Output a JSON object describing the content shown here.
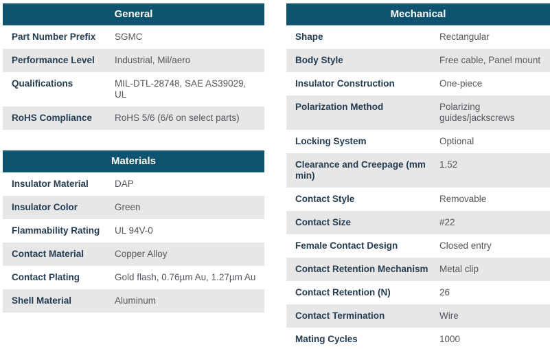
{
  "colors": {
    "header_bg": "#0e536f",
    "header_text": "#ffffff",
    "row_alt_bg": "#e7e7e7",
    "label_text": "#243c52",
    "value_text": "#53565c"
  },
  "tables": {
    "general": {
      "title": "General",
      "rows": [
        {
          "label": "Part Number Prefix",
          "value": "SGMC"
        },
        {
          "label": "Performance Level",
          "value": "Industrial, Mil/aero"
        },
        {
          "label": "Qualifications",
          "value": "MIL-DTL-28748, SAE AS39029, UL"
        },
        {
          "label": "RoHS Compliance",
          "value": "RoHS 5/6 (6/6 on select parts)"
        }
      ]
    },
    "materials": {
      "title": "Materials",
      "rows": [
        {
          "label": "Insulator Material",
          "value": "DAP"
        },
        {
          "label": "Insulator Color",
          "value": "Green"
        },
        {
          "label": "Flammability Rating",
          "value": "UL 94V-0"
        },
        {
          "label": "Contact Material",
          "value": "Copper Alloy"
        },
        {
          "label": "Contact Plating",
          "value": "Gold flash, 0.76µm Au, 1.27µm Au"
        },
        {
          "label": "Shell Material",
          "value": "Aluminum"
        }
      ]
    },
    "mechanical": {
      "title": "Mechanical",
      "rows": [
        {
          "label": "Shape",
          "value": "Rectangular"
        },
        {
          "label": "Body Style",
          "value": "Free cable, Panel mount"
        },
        {
          "label": "Insulator Construction",
          "value": "One-piece"
        },
        {
          "label": "Polarization Method",
          "value": "Polarizing guides/jackscrews"
        },
        {
          "label": "Locking System",
          "value": "Optional"
        },
        {
          "label": "Clearance and Creepage (mm min)",
          "value": "1.52"
        },
        {
          "label": "Contact Style",
          "value": "Removable"
        },
        {
          "label": "Contact Size",
          "value": "#22"
        },
        {
          "label": "Female Contact Design",
          "value": "Closed entry"
        },
        {
          "label": "Contact Retention Mechanism",
          "value": "Metal clip"
        },
        {
          "label": "Contact Retention (N)",
          "value": "26"
        },
        {
          "label": "Contact Termination",
          "value": "Wire"
        },
        {
          "label": "Mating Cycles",
          "value": "1000"
        }
      ]
    }
  }
}
